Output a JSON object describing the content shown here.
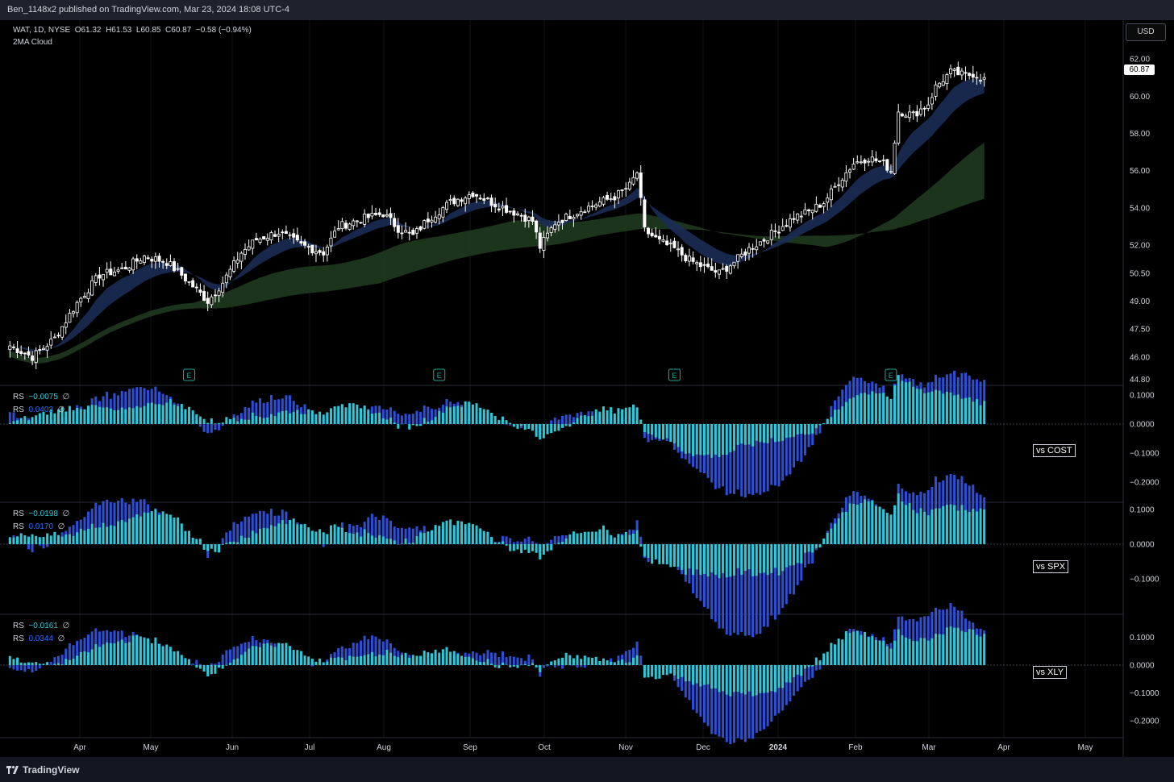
{
  "header": {
    "publish_text": "Ben_1148x2 published on TradingView.com, Mar 23, 2024 18:08 UTC-4"
  },
  "currency_button": "USD",
  "main_legend": {
    "symbol": "WAT, 1D, NYSE",
    "o_label": "O",
    "o": "61.32",
    "h_label": "H",
    "h": "61.53",
    "l_label": "L",
    "l": "60.85",
    "c_label": "C",
    "c": "60.87",
    "change": "−0.58 (−0.94%)",
    "indicator": "2MA Cloud"
  },
  "last_price_tag": "60.87",
  "rs_panels": [
    {
      "rs1_label": "RS",
      "rs1": "−0.0075",
      "rs1_sym": "∅",
      "rs2_label": "RS",
      "rs2": "0.0402",
      "rs2_sym": "∅",
      "vs": "vs COST",
      "ticks": [
        "0.1000",
        "0.0000",
        "−0.1000",
        "−0.2000"
      ]
    },
    {
      "rs1_label": "RS",
      "rs1": "−0.0198",
      "rs1_sym": "∅",
      "rs2_label": "RS",
      "rs2": "0.0170",
      "rs2_sym": "∅",
      "vs": "vs SPX",
      "ticks": [
        "0.1000",
        "0.0000",
        "−0.1000"
      ]
    },
    {
      "rs1_label": "RS",
      "rs1": "−0.0161",
      "rs1_sym": "∅",
      "rs2_label": "RS",
      "rs2": "0.0344",
      "rs2_sym": "∅",
      "vs": "vs XLY",
      "ticks": [
        "0.1000",
        "0.0000",
        "−0.1000",
        "−0.2000"
      ]
    }
  ],
  "earnings_marker": "E",
  "footer": {
    "brand": "TradingView"
  },
  "colors": {
    "bg": "#000000",
    "candle": "#ffffff",
    "cloud_fast": "#1b2c55",
    "cloud_slow": "#1f3a1f",
    "rs_dark": "#2d4fd8",
    "rs_light": "#2ec8d6"
  },
  "chart_data": {
    "type": "candlestick",
    "ticker": "WAT",
    "interval": "1D",
    "exchange": "NYSE",
    "ylim": [
      44.0,
      63.0
    ],
    "y_ticks": [
      "62.00",
      "60.00",
      "58.00",
      "56.00",
      "54.00",
      "52.00",
      "50.50",
      "49.00",
      "47.50",
      "46.00",
      "44.80"
    ],
    "x_ticks": [
      "Apr",
      "May",
      "Jun",
      "Jul",
      "Aug",
      "Sep",
      "Oct",
      "Nov",
      "Dec",
      "2024",
      "Feb",
      "Mar",
      "Apr",
      "May"
    ],
    "price_path": [
      [
        0,
        46.6
      ],
      [
        6,
        46.0
      ],
      [
        12,
        47.0
      ],
      [
        18,
        48.9
      ],
      [
        24,
        50.4
      ],
      [
        30,
        50.7
      ],
      [
        36,
        51.4
      ],
      [
        42,
        51.1
      ],
      [
        46,
        50.4
      ],
      [
        50,
        49.6
      ],
      [
        53,
        49.0
      ],
      [
        57,
        50.0
      ],
      [
        62,
        51.6
      ],
      [
        66,
        52.3
      ],
      [
        72,
        52.7
      ],
      [
        78,
        52.0
      ],
      [
        84,
        51.6
      ],
      [
        88,
        53.0
      ],
      [
        94,
        53.4
      ],
      [
        100,
        53.7
      ],
      [
        104,
        52.9
      ],
      [
        108,
        52.5
      ],
      [
        112,
        53.4
      ],
      [
        118,
        54.3
      ],
      [
        124,
        54.8
      ],
      [
        130,
        54.2
      ],
      [
        136,
        53.7
      ],
      [
        140,
        53.3
      ],
      [
        142,
        51.9
      ],
      [
        146,
        53.2
      ],
      [
        152,
        53.8
      ],
      [
        158,
        54.3
      ],
      [
        162,
        54.6
      ],
      [
        166,
        55.2
      ],
      [
        168,
        55.9
      ],
      [
        170,
        52.8
      ],
      [
        174,
        52.2
      ],
      [
        178,
        51.8
      ],
      [
        182,
        51.2
      ],
      [
        186,
        50.8
      ],
      [
        190,
        50.5
      ],
      [
        194,
        51.1
      ],
      [
        198,
        51.8
      ],
      [
        202,
        52.3
      ],
      [
        206,
        52.9
      ],
      [
        210,
        53.5
      ],
      [
        214,
        53.8
      ],
      [
        218,
        54.3
      ],
      [
        222,
        55.4
      ],
      [
        226,
        56.4
      ],
      [
        230,
        56.7
      ],
      [
        234,
        56.4
      ],
      [
        236,
        56.0
      ],
      [
        238,
        59.2
      ],
      [
        242,
        59.0
      ],
      [
        246,
        59.6
      ],
      [
        248,
        60.5
      ],
      [
        252,
        61.3
      ],
      [
        256,
        61.1
      ],
      [
        258,
        61.2
      ],
      [
        261,
        60.9
      ]
    ],
    "earnings_indices": [
      48,
      115,
      178,
      236
    ],
    "indicator": "2MA Cloud",
    "last_close": 60.87
  }
}
